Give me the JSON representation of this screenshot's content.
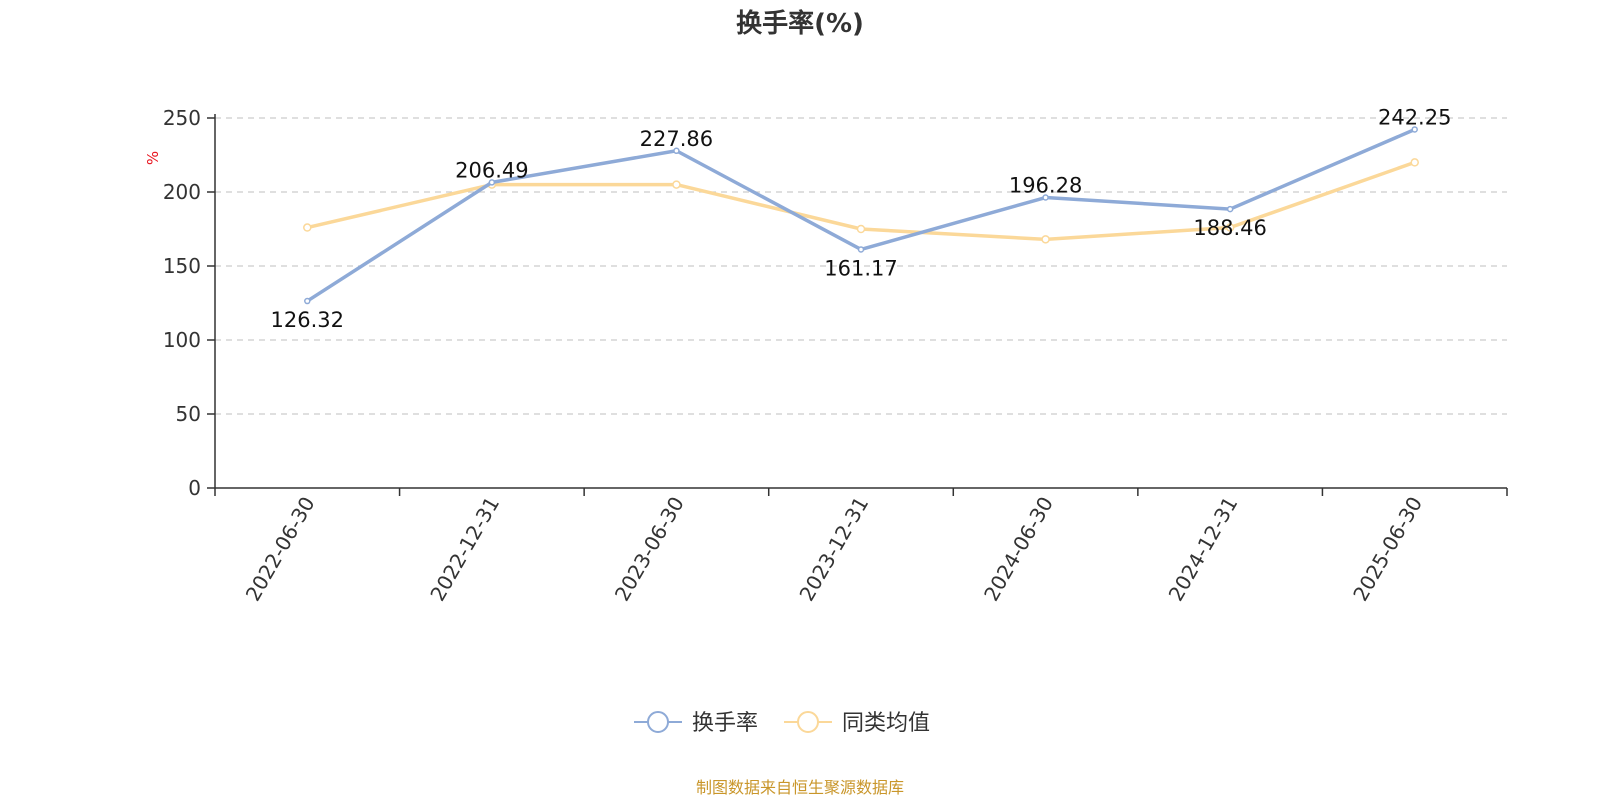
{
  "colors": {
    "series_main": "#8eaad7",
    "series_avg": "#fbd899",
    "grid": "#cccccc",
    "axis": "#333333",
    "unit": "#e8141f",
    "source": "#c9962a"
  },
  "footer": {
    "source": "制图数据来自恒生聚源数据库"
  },
  "chart_data": {
    "type": "line",
    "title": "换手率(%)",
    "ylabel": "%",
    "xlabel": "",
    "ylim": [
      0,
      250
    ],
    "yticks": [
      0,
      50,
      100,
      150,
      200,
      250
    ],
    "grid": true,
    "legend_position": "bottom-center",
    "categories": [
      "2022-06-30",
      "2022-12-31",
      "2023-06-30",
      "2023-12-31",
      "2024-06-30",
      "2024-12-31",
      "2025-06-30"
    ],
    "series": [
      {
        "name": "换手率",
        "color": "#8eaad7",
        "show_labels": true,
        "values": [
          126.32,
          206.49,
          227.86,
          161.17,
          196.28,
          188.46,
          242.25
        ]
      },
      {
        "name": "同类均值",
        "color": "#fbd899",
        "show_labels": false,
        "values": [
          176,
          205,
          205,
          175,
          168,
          176,
          220
        ]
      }
    ]
  }
}
